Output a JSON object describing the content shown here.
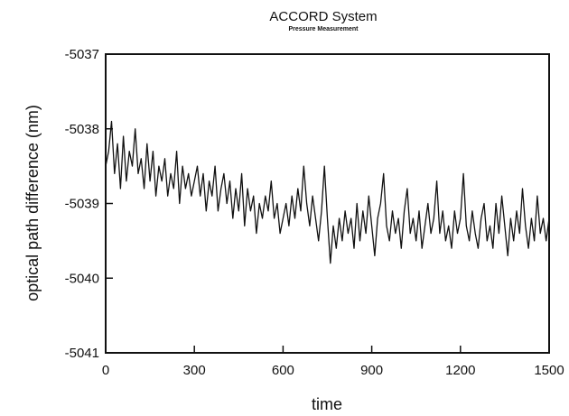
{
  "chart_data": {
    "type": "line",
    "title": "ACCORD System",
    "subtitle": "Pressure Measurement",
    "xlabel": "time",
    "ylabel": "optical path difference (nm)",
    "xlim": [
      0,
      1500
    ],
    "ylim": [
      -5041,
      -5037
    ],
    "xticks": [
      "0",
      "300",
      "600",
      "900",
      "1200",
      "1500"
    ],
    "yticks": [
      "-5041",
      "-5040",
      "-5039",
      "-5038",
      "-5037"
    ],
    "grid": false,
    "series": [
      {
        "x": [
          0,
          10,
          20,
          30,
          40,
          50,
          60,
          70,
          80,
          90,
          100,
          110,
          120,
          130,
          140,
          150,
          160,
          170,
          180,
          190,
          200,
          210,
          220,
          230,
          240,
          250,
          260,
          270,
          280,
          290,
          300,
          310,
          320,
          330,
          340,
          350,
          360,
          370,
          380,
          390,
          400,
          410,
          420,
          430,
          440,
          450,
          460,
          470,
          480,
          490,
          500,
          510,
          520,
          530,
          540,
          550,
          560,
          570,
          580,
          590,
          600,
          610,
          620,
          630,
          640,
          650,
          660,
          670,
          680,
          690,
          700,
          710,
          720,
          730,
          740,
          750,
          760,
          770,
          780,
          790,
          800,
          810,
          820,
          830,
          840,
          850,
          860,
          870,
          880,
          890,
          900,
          910,
          920,
          930,
          940,
          950,
          960,
          970,
          980,
          990,
          1000,
          1010,
          1020,
          1030,
          1040,
          1050,
          1060,
          1070,
          1080,
          1090,
          1100,
          1110,
          1120,
          1130,
          1140,
          1150,
          1160,
          1170,
          1180,
          1190,
          1200,
          1210,
          1220,
          1230,
          1240,
          1250,
          1260,
          1270,
          1280,
          1290,
          1300,
          1310,
          1320,
          1330,
          1340,
          1350,
          1360,
          1370,
          1380,
          1390,
          1400,
          1410,
          1420,
          1430,
          1440,
          1450,
          1460,
          1470,
          1480,
          1490,
          1500
        ],
        "y": [
          -5038.5,
          -5038.3,
          -5037.9,
          -5038.6,
          -5038.2,
          -5038.8,
          -5038.1,
          -5038.7,
          -5038.3,
          -5038.5,
          -5038.0,
          -5038.6,
          -5038.4,
          -5038.8,
          -5038.2,
          -5038.7,
          -5038.3,
          -5038.9,
          -5038.5,
          -5038.7,
          -5038.4,
          -5038.9,
          -5038.6,
          -5038.8,
          -5038.3,
          -5039.0,
          -5038.5,
          -5038.8,
          -5038.6,
          -5038.9,
          -5038.7,
          -5038.5,
          -5038.9,
          -5038.6,
          -5039.1,
          -5038.7,
          -5038.9,
          -5038.5,
          -5039.1,
          -5038.8,
          -5038.6,
          -5039.0,
          -5038.7,
          -5039.2,
          -5038.8,
          -5039.1,
          -5038.6,
          -5039.3,
          -5038.8,
          -5039.1,
          -5038.9,
          -5039.4,
          -5039.0,
          -5039.2,
          -5038.9,
          -5039.1,
          -5038.7,
          -5039.2,
          -5039.0,
          -5039.4,
          -5039.2,
          -5039.0,
          -5039.3,
          -5038.9,
          -5039.2,
          -5038.8,
          -5039.1,
          -5038.5,
          -5039.0,
          -5039.3,
          -5038.9,
          -5039.2,
          -5039.5,
          -5039.1,
          -5038.5,
          -5039.2,
          -5039.8,
          -5039.3,
          -5039.6,
          -5039.2,
          -5039.5,
          -5039.1,
          -5039.4,
          -5039.2,
          -5039.6,
          -5039.0,
          -5039.5,
          -5039.1,
          -5039.4,
          -5038.9,
          -5039.3,
          -5039.7,
          -5039.2,
          -5039.0,
          -5038.6,
          -5039.3,
          -5039.5,
          -5039.1,
          -5039.4,
          -5039.2,
          -5039.6,
          -5039.1,
          -5038.8,
          -5039.4,
          -5039.2,
          -5039.5,
          -5039.1,
          -5039.6,
          -5039.3,
          -5039.0,
          -5039.4,
          -5039.2,
          -5038.7,
          -5039.4,
          -5039.1,
          -5039.5,
          -5039.3,
          -5039.6,
          -5039.1,
          -5039.4,
          -5039.2,
          -5038.6,
          -5039.3,
          -5039.5,
          -5039.1,
          -5039.4,
          -5039.6,
          -5039.2,
          -5039.0,
          -5039.5,
          -5039.3,
          -5039.6,
          -5039.0,
          -5039.4,
          -5038.9,
          -5039.3,
          -5039.7,
          -5039.2,
          -5039.5,
          -5039.1,
          -5039.4,
          -5038.8,
          -5039.3,
          -5039.6,
          -5039.2,
          -5039.5,
          -5038.9,
          -5039.4,
          -5039.2,
          -5039.5,
          -5039.2
        ]
      }
    ]
  }
}
